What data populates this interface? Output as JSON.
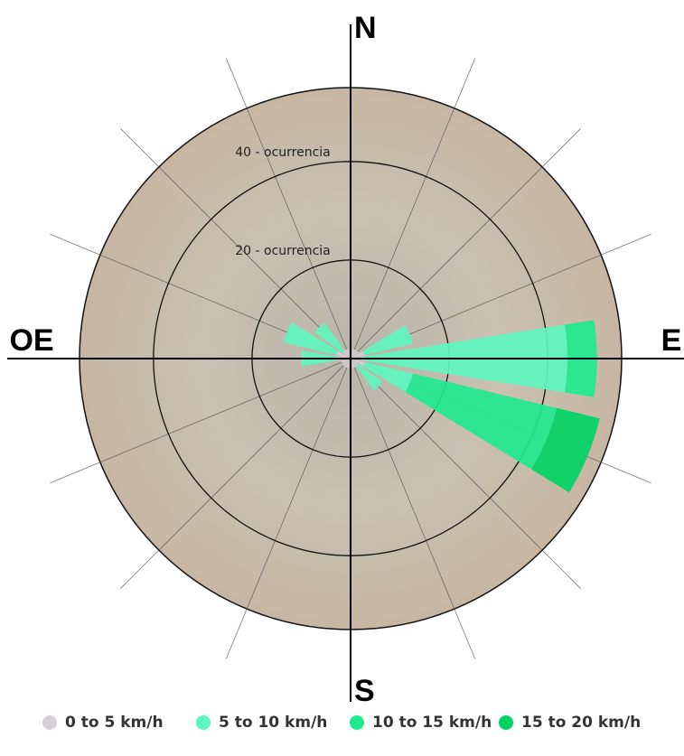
{
  "chart_data": {
    "type": "rose",
    "categories": [
      "N",
      null,
      null,
      null,
      "E",
      null,
      null,
      null,
      "S",
      null,
      null,
      null,
      "OE",
      null,
      null,
      null
    ],
    "rlim": [
      0,
      55
    ],
    "rticks": [
      {
        "value": 20,
        "label": "20 - ocurrencia"
      },
      {
        "value": 40,
        "label": "40 - ocurrencia"
      }
    ],
    "series": [
      {
        "name": "0 to 5 km/h",
        "color": "#d8cdd8",
        "values": [
          2,
          2,
          2,
          3,
          3,
          3,
          2,
          2,
          2,
          2,
          2,
          2,
          3,
          3,
          2,
          2
        ]
      },
      {
        "name": "5 to 10 km/h",
        "color": "#5ef5c0",
        "values": [
          0,
          0,
          0,
          10,
          41,
          10,
          6,
          0,
          0,
          0,
          0,
          0,
          7,
          11,
          7,
          0
        ]
      },
      {
        "name": "10 to 15 km/h",
        "color": "#1fe98e",
        "values": [
          0,
          0,
          0,
          0,
          6,
          30,
          0,
          0,
          0,
          0,
          0,
          0,
          0,
          0,
          0,
          0
        ]
      },
      {
        "name": "15 to 20 km/h",
        "color": "#00d463",
        "values": [
          0,
          0,
          0,
          0,
          0,
          9,
          0,
          0,
          0,
          0,
          0,
          0,
          0,
          0,
          0,
          0
        ]
      }
    ]
  }
}
